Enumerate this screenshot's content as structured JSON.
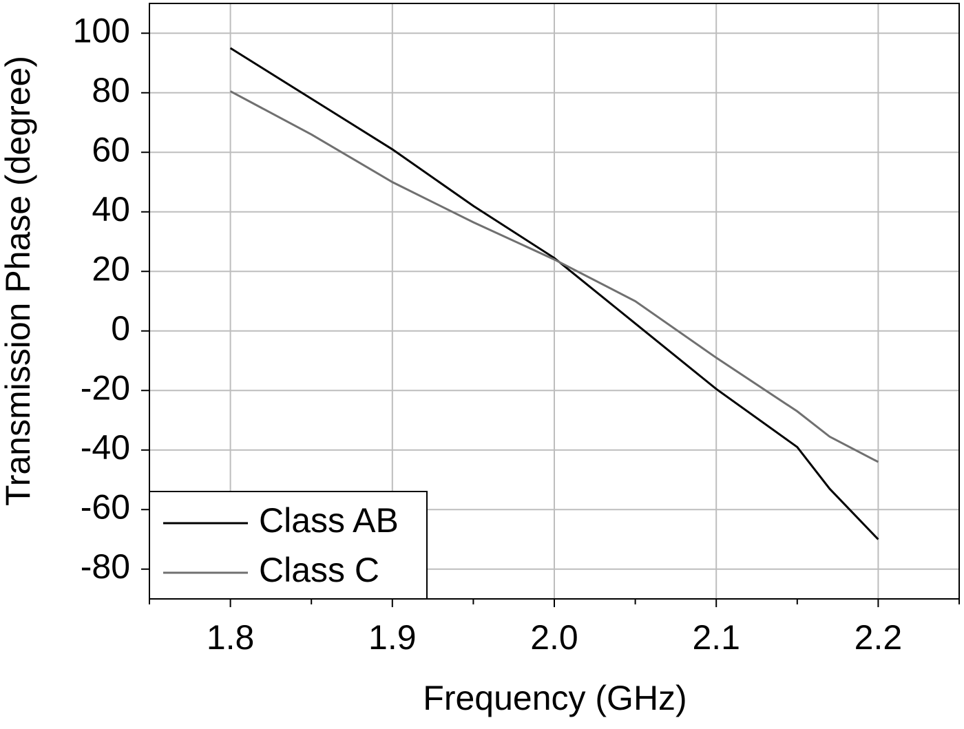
{
  "chart_data": {
    "type": "line",
    "x_label": "Frequency (GHz)",
    "y_label": "Transmission Phase (degree)",
    "xlim": [
      1.75,
      2.25
    ],
    "xticks": [
      1.8,
      1.9,
      {
        "value": 2,
        "label": "2.0"
      },
      2.1,
      2.2
    ],
    "xminorticks": [
      1.75,
      1.85,
      1.95,
      2.05,
      2.15,
      2.25
    ],
    "ylim": [
      -90,
      110
    ],
    "yticks": [
      -80,
      -60,
      -40,
      -20,
      0,
      20,
      40,
      60,
      80,
      100
    ],
    "grid": true,
    "legend": "lower left",
    "x": [
      1.8,
      1.85,
      1.9,
      1.95,
      2.0,
      2.05,
      2.1,
      2.15,
      2.17,
      2.2
    ],
    "series": [
      {
        "name": "Class AB",
        "color": "#000000",
        "values": [
          95,
          78,
          61,
          42,
          24.5,
          2.5,
          -19.5,
          -39,
          -53,
          -70
        ]
      },
      {
        "name": "Class C",
        "color": "#707070",
        "values": [
          80.5,
          66,
          50,
          36.5,
          24,
          10,
          -9,
          -27,
          -35.5,
          -44
        ]
      }
    ]
  }
}
